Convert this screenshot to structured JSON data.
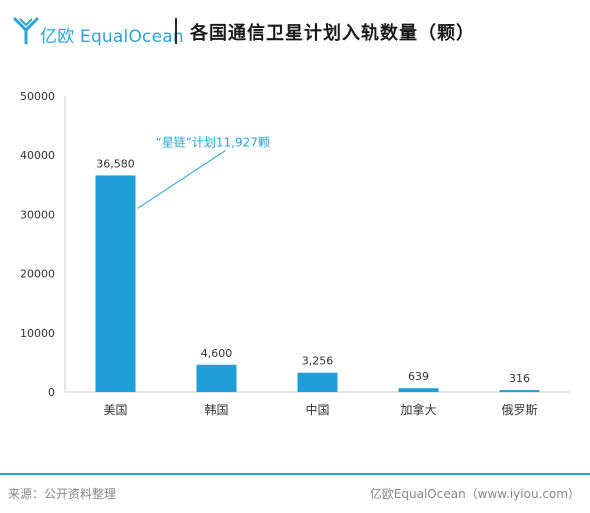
{
  "header": {
    "brand": "亿欧 EqualOcean",
    "title": "各国通信卫星计划入轨数量（颗）"
  },
  "colors": {
    "bar": "#1f9ed8",
    "accent": "#2aa3d6",
    "axis_text": "#333333"
  },
  "chart_data": {
    "type": "bar",
    "title": "各国通信卫星计划入轨数量（颗）",
    "categories": [
      "美国",
      "韩国",
      "中国",
      "加拿大",
      "俄罗斯"
    ],
    "values": [
      36580,
      4600,
      3256,
      639,
      316
    ],
    "value_labels": [
      "36,580",
      "4,600",
      "3,256",
      "639",
      "316"
    ],
    "ylim": [
      0,
      50000
    ],
    "yticks": [
      0,
      10000,
      20000,
      30000,
      40000,
      50000
    ],
    "grid": false,
    "annotation": {
      "text": "“星链”计划11,927颗",
      "category": "美国",
      "value": 11927
    }
  },
  "footer": {
    "source": "来源：公开资料整理",
    "credit": "亿欧EqualOcean（www.iyiou.com）"
  }
}
